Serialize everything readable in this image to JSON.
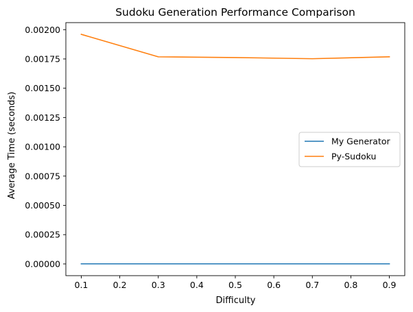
{
  "chart_data": {
    "type": "line",
    "title": "Sudoku Generation Performance Comparison",
    "xlabel": "Difficulty",
    "ylabel": "Average Time (seconds)",
    "x": [
      0.1,
      0.3,
      0.5,
      0.7,
      0.9
    ],
    "xlim": [
      0.06,
      0.94
    ],
    "ylim": [
      -0.0001,
      0.00206
    ],
    "xticks": [
      0.1,
      0.2,
      0.3,
      0.4,
      0.5,
      0.6,
      0.7,
      0.8,
      0.9
    ],
    "xtick_labels": [
      "0.1",
      "0.2",
      "0.3",
      "0.4",
      "0.5",
      "0.6",
      "0.7",
      "0.8",
      "0.9"
    ],
    "yticks": [
      0,
      0.00025,
      0.0005,
      0.00075,
      0.001,
      0.00125,
      0.0015,
      0.00175,
      0.002
    ],
    "ytick_labels": [
      "0.00000",
      "0.00025",
      "0.00050",
      "0.00075",
      "0.00100",
      "0.00125",
      "0.00150",
      "0.00175",
      "0.00200"
    ],
    "series": [
      {
        "name": "My Generator",
        "color": "#1f77b4",
        "values": [
          1e-06,
          1e-06,
          1e-06,
          1e-06,
          1e-06
        ]
      },
      {
        "name": "Py-Sudoku",
        "color": "#ff7f0e",
        "values": [
          0.00196,
          0.001768,
          0.001762,
          0.001752,
          0.001768
        ]
      }
    ],
    "legend": {
      "placement": "center-right"
    },
    "grid": false
  }
}
